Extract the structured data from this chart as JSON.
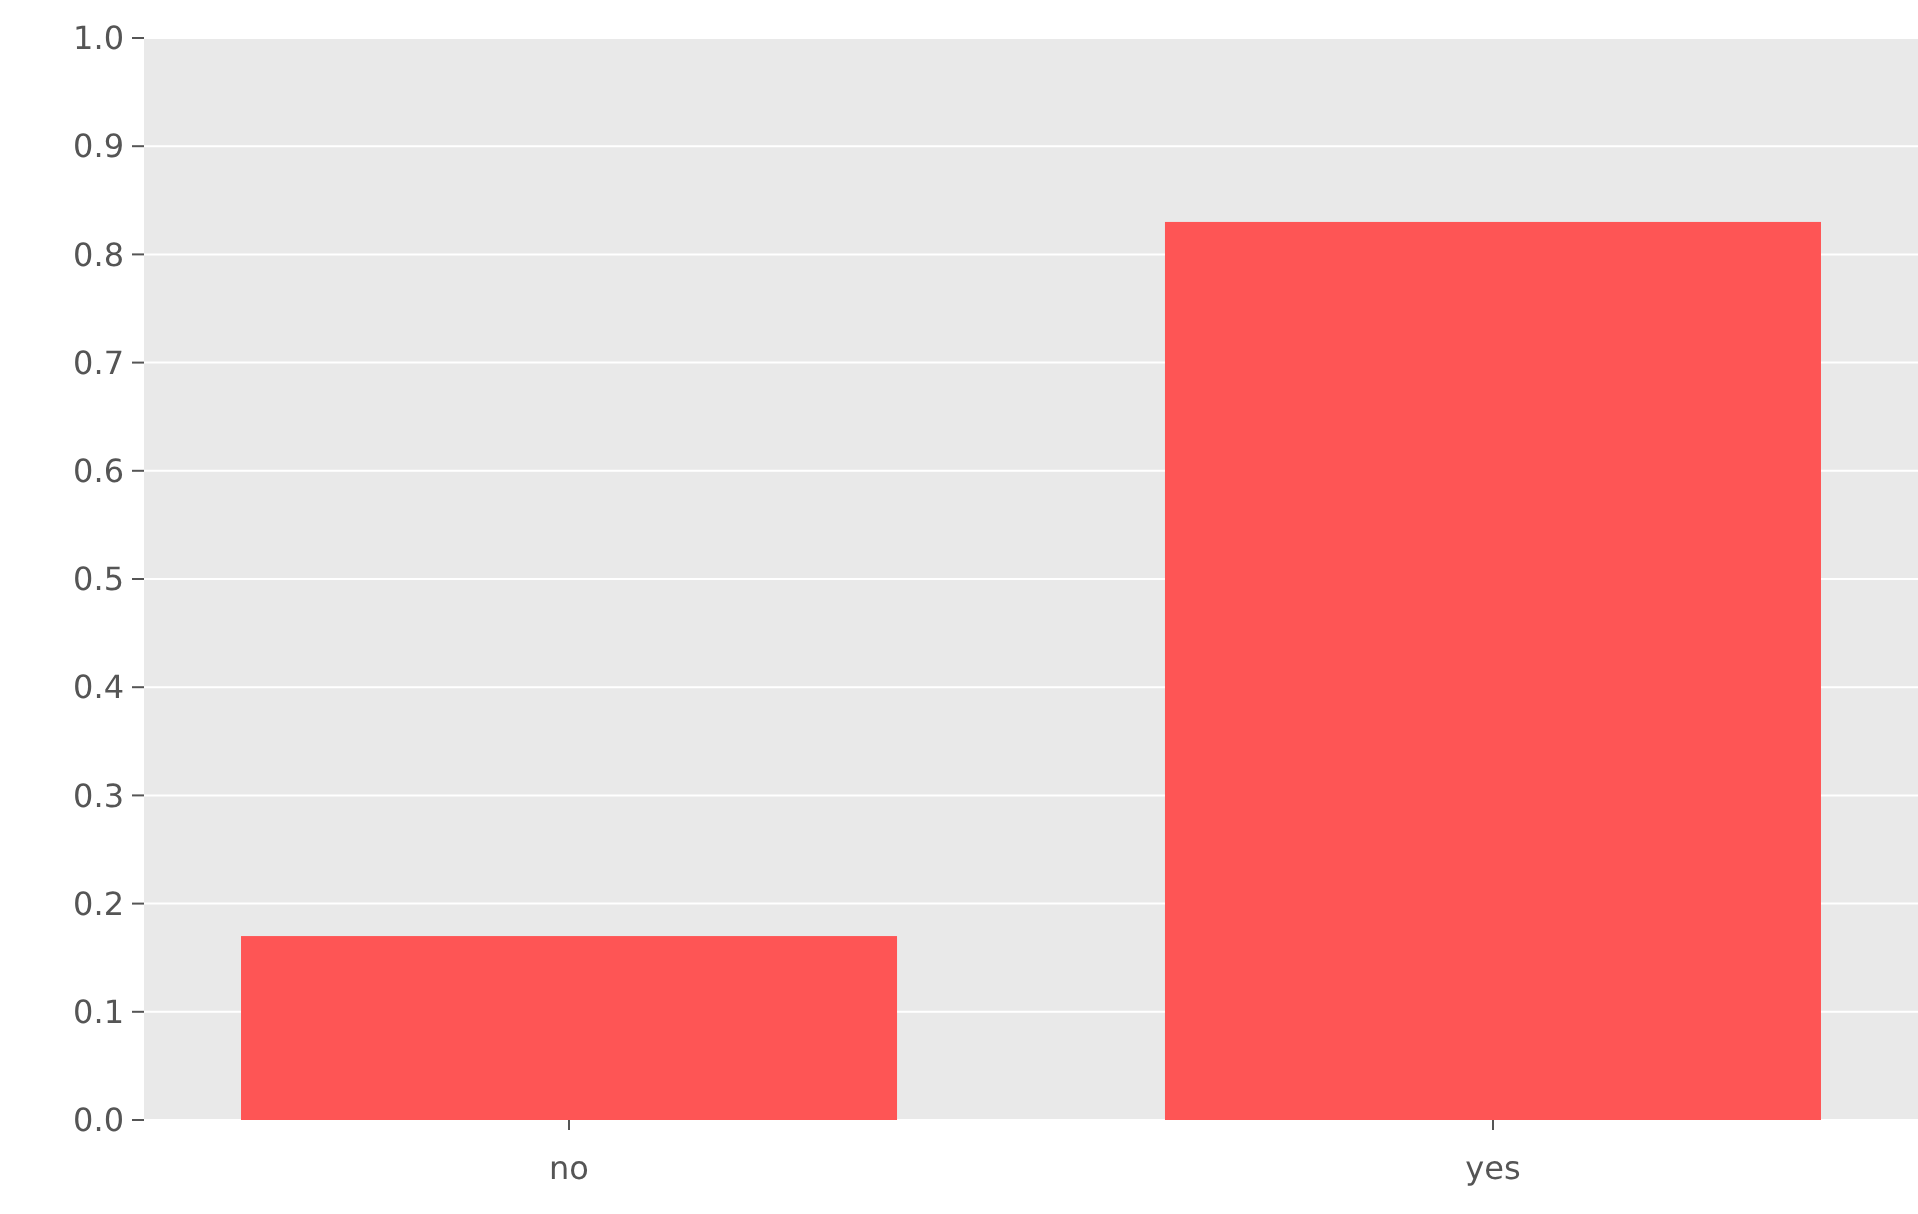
{
  "chart_data": {
    "type": "bar",
    "categories": [
      "no",
      "yes"
    ],
    "values": [
      0.17,
      0.83
    ],
    "color": "#fe5555",
    "ylim": [
      0,
      1
    ],
    "yticks": [
      {
        "value": 0,
        "label": "0.0"
      },
      0.1,
      0.2,
      0.3,
      0.4,
      0.5,
      0.6,
      0.7,
      0.8,
      0.9,
      {
        "value": 1,
        "label": "1.0"
      }
    ],
    "grid": "y"
  }
}
